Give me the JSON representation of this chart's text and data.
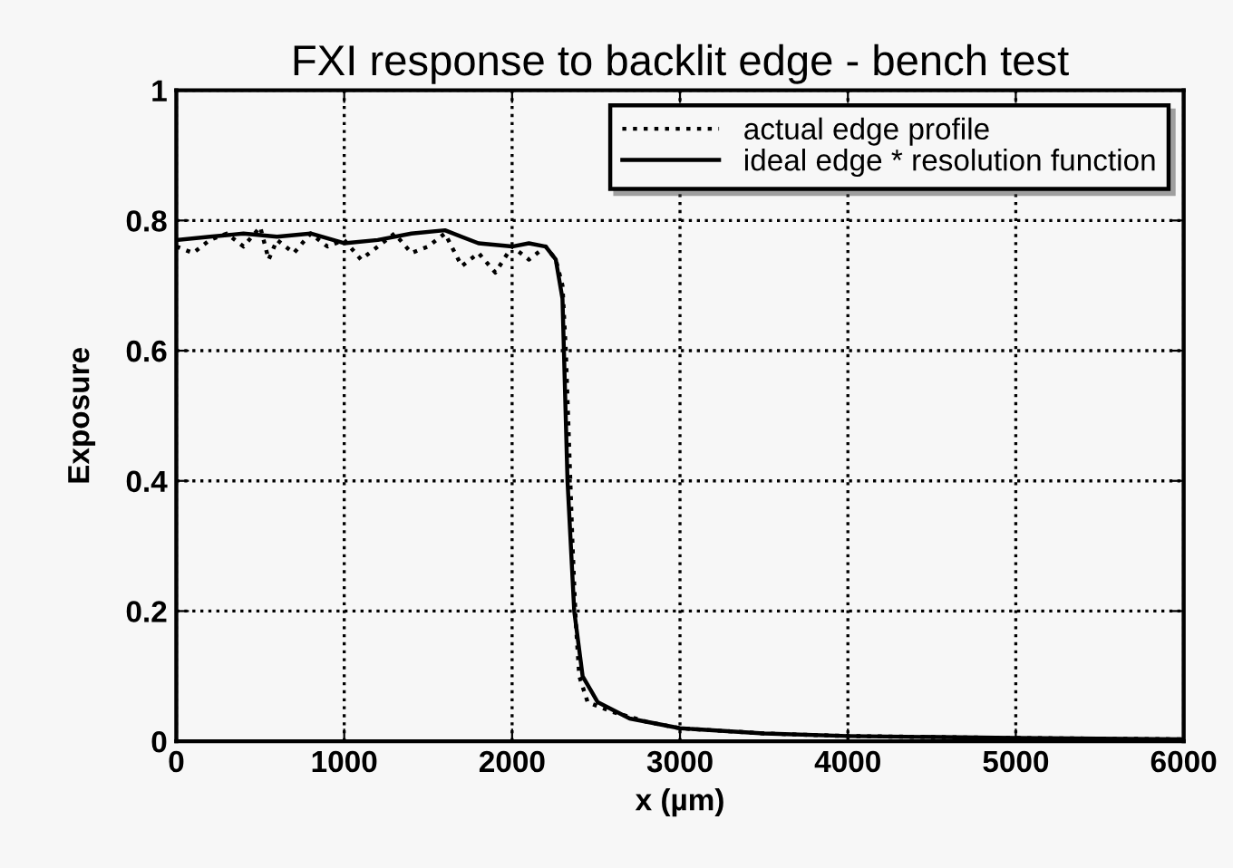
{
  "chart_data": {
    "type": "line",
    "title": "FXI response to backlit edge - bench test",
    "xlabel": "x (µm)",
    "ylabel": "Exposure",
    "xlim": [
      0,
      6000
    ],
    "xticks": [
      0,
      1000,
      2000,
      3000,
      4000,
      5000,
      6000
    ],
    "ylim": [
      0,
      1
    ],
    "yticks": [
      0,
      0.2,
      0.4,
      0.6,
      0.8,
      1
    ],
    "grid": true,
    "legend": "top right",
    "series": [
      {
        "name": "actual edge profile",
        "color": "#000000",
        "line_style": "dotted",
        "x": [
          0,
          100,
          200,
          300,
          400,
          500,
          550,
          600,
          700,
          800,
          900,
          1000,
          1100,
          1200,
          1300,
          1400,
          1500,
          1600,
          1700,
          1800,
          1900,
          2000,
          2100,
          2200,
          2260,
          2300,
          2320,
          2340,
          2360,
          2380,
          2400,
          2450,
          2500,
          2600,
          2800,
          3000,
          3500,
          4000,
          5000,
          6000
        ],
        "values": [
          0.76,
          0.75,
          0.77,
          0.78,
          0.76,
          0.79,
          0.74,
          0.77,
          0.75,
          0.78,
          0.76,
          0.77,
          0.74,
          0.76,
          0.78,
          0.75,
          0.76,
          0.78,
          0.73,
          0.75,
          0.72,
          0.76,
          0.74,
          0.76,
          0.74,
          0.7,
          0.6,
          0.45,
          0.3,
          0.18,
          0.1,
          0.06,
          0.055,
          0.045,
          0.03,
          0.02,
          0.012,
          0.008,
          0.005,
          0.003
        ]
      },
      {
        "name": "ideal edge * resolution function",
        "color": "#000000",
        "line_style": "solid",
        "x": [
          0,
          200,
          400,
          600,
          800,
          1000,
          1200,
          1400,
          1600,
          1800,
          2000,
          2100,
          2200,
          2260,
          2300,
          2330,
          2370,
          2420,
          2510,
          2700,
          3000,
          3500,
          4000,
          5000,
          6000
        ],
        "values": [
          0.77,
          0.775,
          0.78,
          0.775,
          0.78,
          0.765,
          0.77,
          0.78,
          0.785,
          0.765,
          0.76,
          0.765,
          0.76,
          0.74,
          0.68,
          0.4,
          0.2,
          0.1,
          0.06,
          0.035,
          0.02,
          0.012,
          0.008,
          0.005,
          0.003
        ]
      }
    ]
  }
}
